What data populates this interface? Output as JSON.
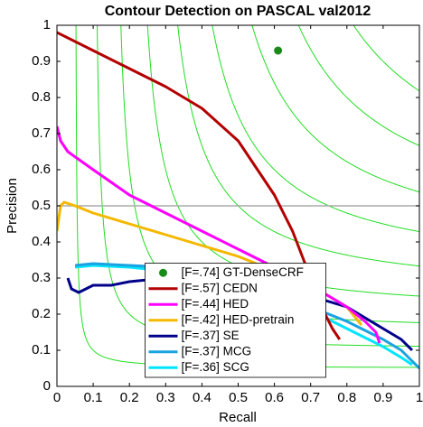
{
  "chart_data": {
    "type": "line",
    "title": "Contour Detection on PASCAL val2012",
    "x_label": "Recall",
    "y_label": "Precision",
    "xlim": [
      0,
      1
    ],
    "ylim": [
      0,
      1
    ],
    "xticks": [
      0,
      0.1,
      0.2,
      0.3,
      0.4,
      0.5,
      0.6,
      0.7,
      0.8,
      0.9,
      1
    ],
    "yticks": [
      0,
      0.1,
      0.2,
      0.3,
      0.4,
      0.5,
      0.6,
      0.7,
      0.8,
      0.9,
      1
    ],
    "iso_f": [
      0.1,
      0.2,
      0.3,
      0.4,
      0.5,
      0.6,
      0.7,
      0.8,
      0.9
    ],
    "iso_f_color": "#22dd22",
    "hline": 0.5,
    "hline_color": "#aaaaaa",
    "legend": "lower center",
    "series": [
      {
        "name": "[F=.74] GT-DenseCRF",
        "type": "scatter",
        "color": "#1a8a1a",
        "x": [
          0.61
        ],
        "values": [
          0.93
        ]
      },
      {
        "name": "[F=.57] CEDN",
        "type": "line",
        "color": "#b30000",
        "x": [
          0,
          0.1,
          0.2,
          0.3,
          0.4,
          0.5,
          0.6,
          0.65,
          0.7,
          0.73,
          0.76,
          0.78
        ],
        "values": [
          0.98,
          0.93,
          0.88,
          0.83,
          0.77,
          0.68,
          0.53,
          0.43,
          0.3,
          0.22,
          0.16,
          0.13
        ]
      },
      {
        "name": "[F=.44] HED",
        "type": "line",
        "color": "#ff00ff",
        "x": [
          0,
          0.01,
          0.03,
          0.1,
          0.2,
          0.3,
          0.4,
          0.5,
          0.6,
          0.7,
          0.8,
          0.85,
          0.88,
          0.89
        ],
        "values": [
          0.72,
          0.68,
          0.65,
          0.6,
          0.53,
          0.48,
          0.43,
          0.38,
          0.33,
          0.28,
          0.22,
          0.18,
          0.15,
          0.12
        ]
      },
      {
        "name": "[F=.42] HED-pretrain",
        "type": "line",
        "color": "#f5b800",
        "x": [
          0,
          0.01,
          0.02,
          0.05,
          0.1,
          0.2,
          0.3,
          0.4,
          0.5,
          0.6,
          0.7,
          0.8,
          0.84
        ],
        "values": [
          0.43,
          0.5,
          0.51,
          0.5,
          0.48,
          0.45,
          0.42,
          0.39,
          0.36,
          0.32,
          0.28,
          0.22,
          0.17
        ]
      },
      {
        "name": "[F=.37] SE",
        "type": "line",
        "color": "#00008b",
        "x": [
          0.03,
          0.04,
          0.06,
          0.1,
          0.15,
          0.2,
          0.3,
          0.4,
          0.5,
          0.6,
          0.7,
          0.8,
          0.9,
          0.95,
          0.98
        ],
        "values": [
          0.3,
          0.27,
          0.26,
          0.28,
          0.28,
          0.29,
          0.3,
          0.3,
          0.29,
          0.27,
          0.25,
          0.22,
          0.16,
          0.13,
          0.1
        ]
      },
      {
        "name": "[F=.37] MCG",
        "type": "line",
        "color": "#1aa3e0",
        "x": [
          0.05,
          0.1,
          0.2,
          0.3,
          0.4,
          0.5,
          0.6,
          0.7,
          0.8,
          0.9,
          0.95,
          1
        ],
        "values": [
          0.335,
          0.34,
          0.335,
          0.33,
          0.31,
          0.29,
          0.26,
          0.22,
          0.18,
          0.13,
          0.1,
          0.05
        ]
      },
      {
        "name": "[F=.36] SCG",
        "type": "line",
        "color": "#00e5ff",
        "x": [
          0.05,
          0.1,
          0.2,
          0.3,
          0.4,
          0.5,
          0.6,
          0.7,
          0.8,
          0.9,
          0.95,
          0.98
        ],
        "values": [
          0.33,
          0.335,
          0.33,
          0.32,
          0.3,
          0.28,
          0.25,
          0.21,
          0.16,
          0.11,
          0.08,
          0.06
        ]
      }
    ]
  }
}
